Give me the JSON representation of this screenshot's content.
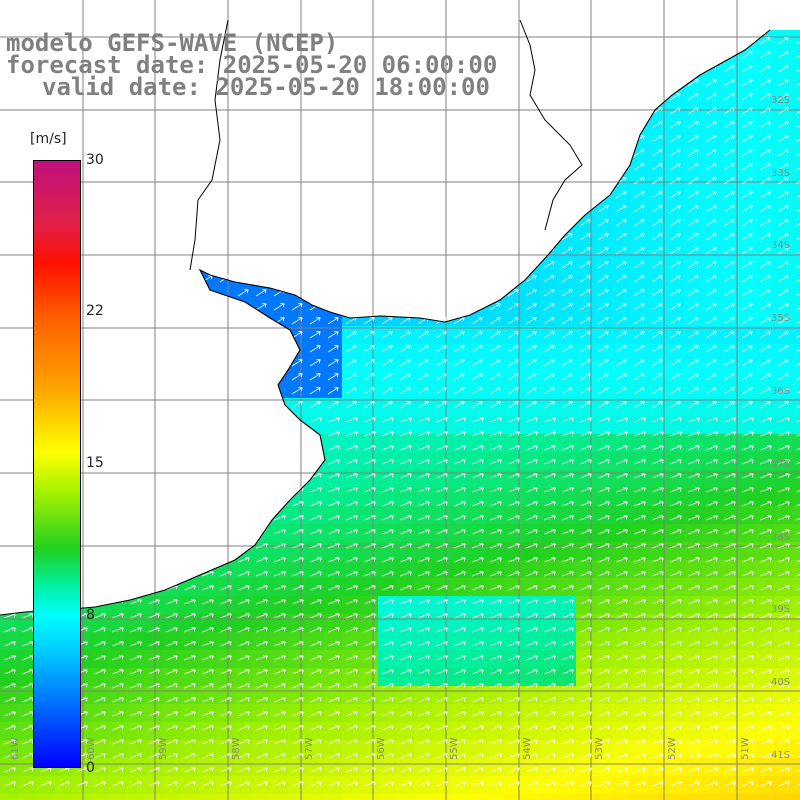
{
  "title": {
    "line1": "modelo GEFS-WAVE (NCEP)",
    "line2": "forecast date: 2025-05-20 06:00:00",
    "line3": "valid date: 2025-05-20 18:00:00"
  },
  "colorbar": {
    "unit": "[m/s]",
    "ticks": [
      "30",
      "22",
      "15",
      "8",
      "0"
    ],
    "tick_values": [
      30,
      22,
      15,
      8,
      0
    ],
    "min": 0,
    "max": 30
  },
  "lat_labels": [
    "32S",
    "33S",
    "34S",
    "35S",
    "36S",
    "37S",
    "38S",
    "39S",
    "40S",
    "41S"
  ],
  "lon_labels": [
    "61W",
    "60W",
    "59W",
    "58W",
    "57W",
    "56W",
    "55W",
    "54W",
    "53W",
    "52W",
    "51W"
  ],
  "colors": {
    "land": "#ffffff",
    "grid": "#808080",
    "coast": "#000000",
    "arrows": "#ffffff",
    "title": "#808080"
  }
}
